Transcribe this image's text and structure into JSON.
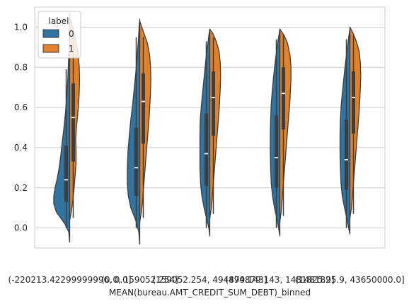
{
  "chart_data": {
    "type": "violin",
    "split": true,
    "xlabel": "MEAN(bureau.AMT_CREDIT_SUM_DEBT)_binned",
    "ylabel": "",
    "ylim": [
      -0.1,
      1.1
    ],
    "yticks": [
      "0.0",
      "0.2",
      "0.4",
      "0.6",
      "0.8",
      "1.0"
    ],
    "grid": true,
    "categories": [
      "(-220213.42299999996, 0.0]",
      "(0.0, 159052.254]",
      "(159052.254, 494879.143]",
      "(494879.143, 1481825.9]",
      "(1481825.9, 43650000.0]"
    ],
    "legend": {
      "title": "label",
      "placement": "top-left",
      "entries": [
        "0",
        "1"
      ]
    },
    "colors": {
      "0": "#3274a1",
      "1": "#e1812c",
      "edge": "#3d3d3d",
      "grid": "#cccccc",
      "frame": "#cccccc"
    },
    "series": [
      {
        "name": "0",
        "violins": [
          {
            "range": [
              -0.07,
              1.07
            ],
            "q1": 0.13,
            "median": 0.24,
            "q3": 0.41,
            "whisker": [
              0.0,
              0.79
            ],
            "density": [
              [
                -0.07,
                0
              ],
              [
                -0.02,
                0.03
              ],
              [
                0.02,
                0.15
              ],
              [
                0.08,
                0.42
              ],
              [
                0.12,
                0.5
              ],
              [
                0.16,
                0.5
              ],
              [
                0.2,
                0.46
              ],
              [
                0.24,
                0.4
              ],
              [
                0.3,
                0.33
              ],
              [
                0.36,
                0.28
              ],
              [
                0.42,
                0.24
              ],
              [
                0.5,
                0.18
              ],
              [
                0.58,
                0.13
              ],
              [
                0.66,
                0.09
              ],
              [
                0.74,
                0.06
              ],
              [
                0.82,
                0.04
              ],
              [
                0.9,
                0.02
              ],
              [
                1.0,
                0.01
              ],
              [
                1.07,
                0
              ]
            ]
          },
          {
            "range": [
              -0.08,
              1.04
            ],
            "q1": 0.16,
            "median": 0.3,
            "q3": 0.5,
            "whisker": [
              0.0,
              0.95
            ],
            "density": [
              [
                -0.08,
                0
              ],
              [
                -0.02,
                0.03
              ],
              [
                0.04,
                0.13
              ],
              [
                0.1,
                0.28
              ],
              [
                0.16,
                0.36
              ],
              [
                0.22,
                0.39
              ],
              [
                0.3,
                0.39
              ],
              [
                0.38,
                0.37
              ],
              [
                0.46,
                0.33
              ],
              [
                0.54,
                0.28
              ],
              [
                0.62,
                0.22
              ],
              [
                0.7,
                0.17
              ],
              [
                0.78,
                0.12
              ],
              [
                0.86,
                0.08
              ],
              [
                0.94,
                0.04
              ],
              [
                1.0,
                0.02
              ],
              [
                1.04,
                0
              ]
            ]
          },
          {
            "range": [
              -0.04,
              0.99
            ],
            "q1": 0.21,
            "median": 0.37,
            "q3": 0.57,
            "whisker": [
              0.0,
              0.93
            ],
            "density": [
              [
                -0.04,
                0
              ],
              [
                0.0,
                0.03
              ],
              [
                0.04,
                0.09
              ],
              [
                0.1,
                0.18
              ],
              [
                0.16,
                0.25
              ],
              [
                0.22,
                0.29
              ],
              [
                0.3,
                0.31
              ],
              [
                0.38,
                0.31
              ],
              [
                0.46,
                0.31
              ],
              [
                0.54,
                0.3
              ],
              [
                0.62,
                0.26
              ],
              [
                0.7,
                0.21
              ],
              [
                0.78,
                0.16
              ],
              [
                0.86,
                0.11
              ],
              [
                0.92,
                0.06
              ],
              [
                0.96,
                0.03
              ],
              [
                0.99,
                0
              ]
            ]
          },
          {
            "range": [
              -0.04,
              0.99
            ],
            "q1": 0.2,
            "median": 0.35,
            "q3": 0.56,
            "whisker": [
              0.0,
              0.94
            ],
            "density": [
              [
                -0.04,
                0
              ],
              [
                0.0,
                0.04
              ],
              [
                0.05,
                0.1
              ],
              [
                0.1,
                0.17
              ],
              [
                0.16,
                0.23
              ],
              [
                0.22,
                0.27
              ],
              [
                0.3,
                0.29
              ],
              [
                0.38,
                0.3
              ],
              [
                0.46,
                0.3
              ],
              [
                0.54,
                0.29
              ],
              [
                0.62,
                0.27
              ],
              [
                0.7,
                0.23
              ],
              [
                0.78,
                0.18
              ],
              [
                0.86,
                0.12
              ],
              [
                0.92,
                0.07
              ],
              [
                0.96,
                0.03
              ],
              [
                0.99,
                0
              ]
            ]
          },
          {
            "range": [
              -0.03,
              0.99
            ],
            "q1": 0.19,
            "median": 0.34,
            "q3": 0.54,
            "whisker": [
              0.0,
              0.94
            ],
            "density": [
              [
                -0.03,
                0
              ],
              [
                0.0,
                0.04
              ],
              [
                0.05,
                0.1
              ],
              [
                0.1,
                0.17
              ],
              [
                0.16,
                0.24
              ],
              [
                0.22,
                0.28
              ],
              [
                0.3,
                0.3
              ],
              [
                0.38,
                0.31
              ],
              [
                0.46,
                0.31
              ],
              [
                0.54,
                0.3
              ],
              [
                0.62,
                0.27
              ],
              [
                0.7,
                0.22
              ],
              [
                0.78,
                0.17
              ],
              [
                0.86,
                0.11
              ],
              [
                0.92,
                0.06
              ],
              [
                0.96,
                0.03
              ],
              [
                0.99,
                0
              ]
            ]
          }
        ]
      },
      {
        "name": "1",
        "violins": [
          {
            "range": [
              0.04,
              1.05
            ],
            "q1": 0.33,
            "median": 0.55,
            "q3": 0.72,
            "whisker": [
              0.05,
              1.0
            ],
            "density": [
              [
                0.04,
                0
              ],
              [
                0.08,
                0.05
              ],
              [
                0.14,
                0.1
              ],
              [
                0.2,
                0.14
              ],
              [
                0.26,
                0.17
              ],
              [
                0.32,
                0.2
              ],
              [
                0.38,
                0.2
              ],
              [
                0.44,
                0.19
              ],
              [
                0.5,
                0.21
              ],
              [
                0.56,
                0.25
              ],
              [
                0.62,
                0.28
              ],
              [
                0.68,
                0.3
              ],
              [
                0.74,
                0.31
              ],
              [
                0.8,
                0.3
              ],
              [
                0.86,
                0.27
              ],
              [
                0.92,
                0.21
              ],
              [
                0.98,
                0.12
              ],
              [
                1.02,
                0.05
              ],
              [
                1.05,
                0
              ]
            ]
          },
          {
            "range": [
              0.03,
              1.03
            ],
            "q1": 0.42,
            "median": 0.63,
            "q3": 0.77,
            "whisker": [
              0.05,
              0.95
            ],
            "density": [
              [
                0.03,
                0
              ],
              [
                0.08,
                0.05
              ],
              [
                0.14,
                0.09
              ],
              [
                0.2,
                0.12
              ],
              [
                0.26,
                0.15
              ],
              [
                0.32,
                0.18
              ],
              [
                0.38,
                0.21
              ],
              [
                0.44,
                0.24
              ],
              [
                0.5,
                0.27
              ],
              [
                0.56,
                0.3
              ],
              [
                0.62,
                0.32
              ],
              [
                0.68,
                0.34
              ],
              [
                0.74,
                0.35
              ],
              [
                0.8,
                0.34
              ],
              [
                0.86,
                0.31
              ],
              [
                0.92,
                0.24
              ],
              [
                0.97,
                0.13
              ],
              [
                1.03,
                0
              ]
            ]
          },
          {
            "range": [
              0.05,
              0.99
            ],
            "q1": 0.46,
            "median": 0.65,
            "q3": 0.78,
            "whisker": [
              0.07,
              0.95
            ],
            "density": [
              [
                0.05,
                0
              ],
              [
                0.1,
                0.05
              ],
              [
                0.16,
                0.08
              ],
              [
                0.22,
                0.11
              ],
              [
                0.28,
                0.14
              ],
              [
                0.34,
                0.17
              ],
              [
                0.4,
                0.2
              ],
              [
                0.46,
                0.23
              ],
              [
                0.52,
                0.26
              ],
              [
                0.58,
                0.29
              ],
              [
                0.64,
                0.31
              ],
              [
                0.7,
                0.33
              ],
              [
                0.76,
                0.34
              ],
              [
                0.82,
                0.33
              ],
              [
                0.88,
                0.29
              ],
              [
                0.93,
                0.2
              ],
              [
                0.97,
                0.09
              ],
              [
                0.99,
                0
              ]
            ]
          },
          {
            "range": [
              0.03,
              0.99
            ],
            "q1": 0.49,
            "median": 0.67,
            "q3": 0.8,
            "whisker": [
              0.06,
              0.96
            ],
            "density": [
              [
                0.03,
                0
              ],
              [
                0.08,
                0.04
              ],
              [
                0.14,
                0.07
              ],
              [
                0.2,
                0.1
              ],
              [
                0.26,
                0.13
              ],
              [
                0.32,
                0.16
              ],
              [
                0.38,
                0.19
              ],
              [
                0.44,
                0.22
              ],
              [
                0.5,
                0.25
              ],
              [
                0.56,
                0.28
              ],
              [
                0.62,
                0.31
              ],
              [
                0.68,
                0.33
              ],
              [
                0.74,
                0.35
              ],
              [
                0.8,
                0.35
              ],
              [
                0.86,
                0.32
              ],
              [
                0.92,
                0.24
              ],
              [
                0.96,
                0.13
              ],
              [
                0.99,
                0
              ]
            ]
          },
          {
            "range": [
              0.05,
              1.0
            ],
            "q1": 0.47,
            "median": 0.65,
            "q3": 0.78,
            "whisker": [
              0.07,
              0.96
            ],
            "density": [
              [
                0.05,
                0
              ],
              [
                0.1,
                0.05
              ],
              [
                0.16,
                0.08
              ],
              [
                0.22,
                0.11
              ],
              [
                0.28,
                0.14
              ],
              [
                0.34,
                0.17
              ],
              [
                0.4,
                0.2
              ],
              [
                0.46,
                0.23
              ],
              [
                0.52,
                0.26
              ],
              [
                0.58,
                0.29
              ],
              [
                0.64,
                0.31
              ],
              [
                0.7,
                0.33
              ],
              [
                0.76,
                0.34
              ],
              [
                0.82,
                0.33
              ],
              [
                0.88,
                0.29
              ],
              [
                0.93,
                0.2
              ],
              [
                0.97,
                0.1
              ],
              [
                1.0,
                0
              ]
            ]
          }
        ]
      }
    ]
  }
}
